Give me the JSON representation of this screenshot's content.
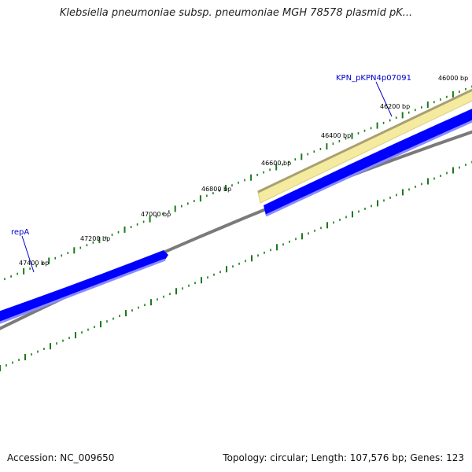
{
  "title": "Klebsiella pneumoniae subsp. pneumoniae MGH 78578 plasmid pK...",
  "footer": {
    "accession": "Accession: NC_009650",
    "summary": "Topology: circular; Length: 107,576 bp; Genes: 123"
  },
  "colors": {
    "backbone": "#808080",
    "forward_gene": "#0000ff",
    "reverse_gene": "#f4eaa0",
    "tick": "#1a7a1a",
    "gene_label": "#0000cc"
  },
  "ticks": [
    {
      "label": "46000 bp"
    },
    {
      "label": "46200 bp"
    },
    {
      "label": "46400 bp"
    },
    {
      "label": "46600 bp"
    },
    {
      "label": "46800 bp"
    },
    {
      "label": "47000 bp"
    },
    {
      "label": "47200 bp"
    },
    {
      "label": "47400 bp"
    }
  ],
  "genes": [
    {
      "name": "KPN_pKPN4p07091"
    },
    {
      "name": "repA"
    }
  ]
}
